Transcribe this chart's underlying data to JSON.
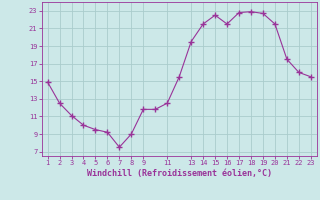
{
  "x": [
    1,
    2,
    3,
    4,
    5,
    6,
    7,
    8,
    9,
    10,
    11,
    12,
    13,
    14,
    15,
    16,
    17,
    18,
    19,
    20,
    21,
    22,
    23
  ],
  "y": [
    14.9,
    12.5,
    11.1,
    10.0,
    9.5,
    9.2,
    7.5,
    9.0,
    11.8,
    11.8,
    12.5,
    15.5,
    19.5,
    21.5,
    22.5,
    21.5,
    22.8,
    22.9,
    22.7,
    21.5,
    17.5,
    16.0,
    15.5
  ],
  "line_color": "#993399",
  "marker": "+",
  "marker_size": 4,
  "marker_linewidth": 1.0,
  "bg_color": "#cce8e8",
  "grid_color": "#aacccc",
  "xlabel": "Windchill (Refroidissement éolien,°C)",
  "xlabel_fontsize": 6.0,
  "tick_color": "#993399",
  "xlim": [
    0.5,
    23.5
  ],
  "ylim": [
    6.5,
    24.0
  ],
  "yticks": [
    7,
    9,
    11,
    13,
    15,
    17,
    19,
    21,
    23
  ],
  "xticks": [
    1,
    2,
    3,
    4,
    5,
    6,
    7,
    8,
    9,
    11,
    13,
    14,
    15,
    16,
    17,
    18,
    19,
    20,
    21,
    22,
    23
  ],
  "tick_fontsize": 5.0,
  "linewidth": 0.8
}
